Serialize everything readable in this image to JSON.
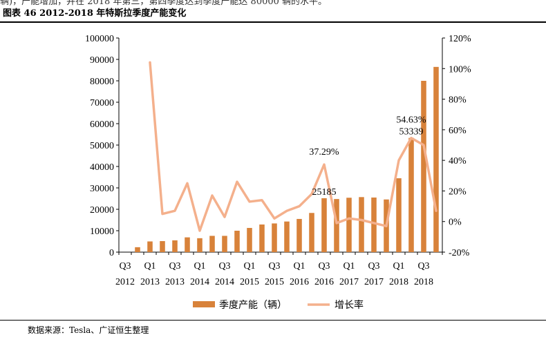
{
  "header_clip": "辆)，产能增加，并在 2018 年第三，第四季度达到季度产能达 80000 辆的水平。",
  "figure_title": "图表 46 2012-2018 年特斯拉季度产能变化",
  "source": "数据来源：Tesla、广证恒生整理",
  "colors": {
    "bar": "#D8823A",
    "line": "#F4B08C",
    "axis": "#000000"
  },
  "chart_data": {
    "type": "bar+line",
    "categories": [
      "Q3 2012",
      "Q4 2012",
      "Q1 2013",
      "Q2 2013",
      "Q3 2013",
      "Q4 2013",
      "Q1 2014",
      "Q2 2014",
      "Q3 2014",
      "Q4 2014",
      "Q1 2015",
      "Q2 2015",
      "Q3 2015",
      "Q4 2015",
      "Q1 2016",
      "Q2 2016",
      "Q3 2016",
      "Q4 2016",
      "Q1 2017",
      "Q2 2017",
      "Q3 2017",
      "Q4 2017",
      "Q1 2018",
      "Q2 2018",
      "Q3 2018",
      "Q4 2018"
    ],
    "x_tick_labels": [
      {
        "q": "Q3",
        "y": "2012"
      },
      {
        "q": "Q1",
        "y": "2013"
      },
      {
        "q": "Q3",
        "y": "2013"
      },
      {
        "q": "Q1",
        "y": "2014"
      },
      {
        "q": "Q3",
        "y": "2014"
      },
      {
        "q": "Q1",
        "y": "2015"
      },
      {
        "q": "Q3",
        "y": "2015"
      },
      {
        "q": "Q1",
        "y": "2016"
      },
      {
        "q": "Q3",
        "y": "2016"
      },
      {
        "q": "Q1",
        "y": "2017"
      },
      {
        "q": "Q3",
        "y": "2017"
      },
      {
        "q": "Q1",
        "y": "2018"
      },
      {
        "q": "Q3",
        "y": "2018"
      }
    ],
    "series": [
      {
        "name": "季度产能（辆）",
        "axis": "left",
        "type": "bar",
        "values": [
          0,
          2300,
          5000,
          5150,
          5500,
          6900,
          6500,
          7600,
          7600,
          10000,
          11300,
          12900,
          13400,
          14300,
          15500,
          18300,
          25185,
          24800,
          25400,
          25700,
          25500,
          24600,
          34500,
          53339,
          80000,
          86500
        ]
      },
      {
        "name": "增长率",
        "axis": "right",
        "type": "line",
        "values": [
          null,
          null,
          104,
          5,
          7,
          25,
          -6,
          17,
          3,
          26,
          13,
          14,
          2,
          7,
          10,
          18,
          37.29,
          -1,
          2,
          1,
          -1,
          -3,
          40,
          54.63,
          50,
          7
        ]
      }
    ],
    "left_axis": {
      "min": 0,
      "max": 100000,
      "ticks": [
        "0",
        "10000",
        "20000",
        "30000",
        "40000",
        "50000",
        "60000",
        "70000",
        "80000",
        "90000",
        "100000"
      ]
    },
    "right_axis": {
      "min": -20,
      "max": 120,
      "ticks": [
        "-20%",
        "0%",
        "20%",
        "40%",
        "60%",
        "80%",
        "100%",
        "120%"
      ]
    },
    "annotations": [
      {
        "text": "37.29%",
        "series": "增长率",
        "index": 16
      },
      {
        "text": "25185",
        "series": "季度产能（辆）",
        "index": 16
      },
      {
        "text": "54.63%",
        "series": "增长率",
        "index": 23
      },
      {
        "text": "53339",
        "series": "季度产能（辆）",
        "index": 23
      }
    ],
    "legend": [
      "季度产能（辆）",
      "增长率"
    ],
    "legend_position": "bottom-center"
  }
}
